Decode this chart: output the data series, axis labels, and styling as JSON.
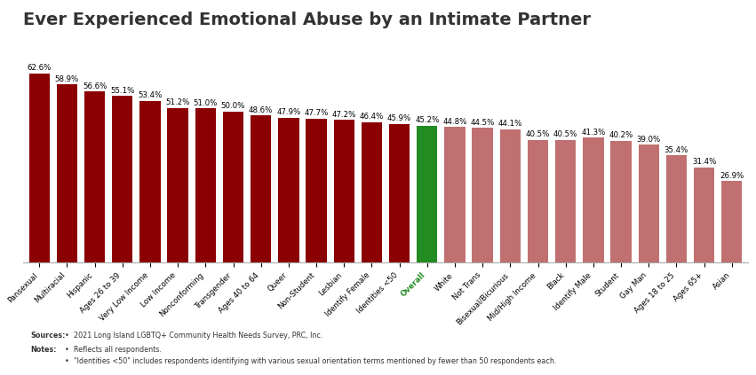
{
  "title": "Ever Experienced Emotional Abuse by an Intimate Partner",
  "categories": [
    "Pansexual",
    "Multiracial",
    "Hispanic",
    "Ages 26 to 39",
    "Very Low Income",
    "Low Income",
    "Nonconforming",
    "Transgender",
    "Ages 40 to 64",
    "Queer",
    "Non-Student",
    "Lesbian",
    "Identify Female",
    "Identities <50",
    "Overall",
    "White",
    "Not Trans",
    "Bisexual/Bicurious",
    "Mid/High Income",
    "Black",
    "Identify Male",
    "Student",
    "Gay Man",
    "Ages 18 to 25",
    "Ages 65+",
    "Asian"
  ],
  "values": [
    62.6,
    58.9,
    56.6,
    55.1,
    53.4,
    51.2,
    51.0,
    50.0,
    48.6,
    47.9,
    47.7,
    47.2,
    46.4,
    45.9,
    45.2,
    44.8,
    44.5,
    44.1,
    40.5,
    40.5,
    41.3,
    40.2,
    39.0,
    35.4,
    31.4,
    26.9
  ],
  "bar_colors": [
    "#8B0000",
    "#8B0000",
    "#8B0000",
    "#8B0000",
    "#8B0000",
    "#8B0000",
    "#8B0000",
    "#8B0000",
    "#8B0000",
    "#8B0000",
    "#8B0000",
    "#8B0000",
    "#8B0000",
    "#8B0000",
    "#228B22",
    "#C07070",
    "#C07070",
    "#C07070",
    "#C07070",
    "#C07070",
    "#C07070",
    "#C07070",
    "#C07070",
    "#C07070",
    "#C07070",
    "#C07070"
  ],
  "overall_color": "#228B22",
  "dark_red": "#8B0000",
  "light_red": "#C07070",
  "sources_label": "Sources:",
  "sources_bullet": "2021 Long Island LGBTQ+ Community Health Needs Survey, PRC, Inc.",
  "notes_label": "Notes:",
  "notes_bullet1": "Reflects all respondents.",
  "notes_bullet2": "\"Identities <50\" includes respondents identifying with various sexual orientation terms mentioned by fewer than 50 respondents each.",
  "title_fontsize": 14,
  "label_fontsize": 6.2,
  "tick_fontsize": 6.2,
  "footnote_fontsize": 5.8
}
